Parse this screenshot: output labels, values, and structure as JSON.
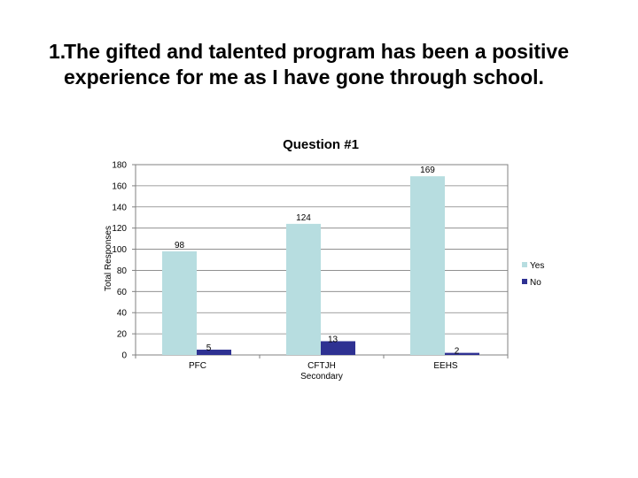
{
  "slide": {
    "number": "1.",
    "title": "The gifted and talented program has been a positive experience for me as I have gone through school."
  },
  "chart_data": {
    "type": "bar",
    "title": "Question #1",
    "xlabel": "",
    "ylabel": "Total Responses",
    "categories": [
      "PFC",
      "CFTJH Secondary",
      "EEHS"
    ],
    "series": [
      {
        "name": "Yes",
        "values": [
          98,
          124,
          169
        ],
        "color": "#b7dde0"
      },
      {
        "name": "No",
        "values": [
          5,
          13,
          2
        ],
        "color": "#2e3192"
      }
    ],
    "ylim": [
      0,
      180
    ],
    "yticks": [
      0,
      20,
      40,
      60,
      80,
      100,
      120,
      140,
      160,
      180
    ],
    "grid": true,
    "legend": "right"
  }
}
